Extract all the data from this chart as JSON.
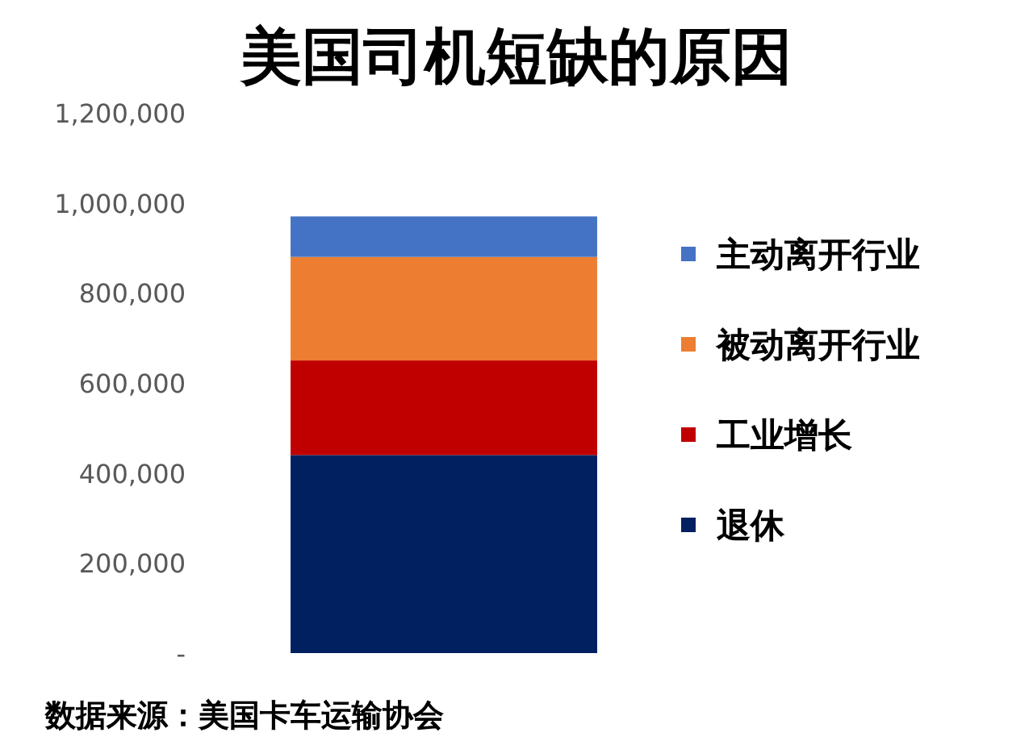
{
  "chart_data": {
    "type": "bar",
    "title": "美国司机短缺的原因",
    "stacked": true,
    "categories": [
      null
    ],
    "series": [
      {
        "name": "退休",
        "color": "#002060",
        "values": [
          440000
        ]
      },
      {
        "name": "工业增长",
        "color": "#c00000",
        "values": [
          210000
        ]
      },
      {
        "name": "被动离开行业",
        "color": "#ed7d31",
        "values": [
          230000
        ]
      },
      {
        "name": "主动离开行业",
        "color": "#4472c4",
        "values": [
          90000
        ]
      }
    ],
    "ylim": [
      0,
      1200000
    ],
    "yticks": [
      {
        "value": 0,
        "label": "-"
      },
      {
        "value": 200000,
        "label": "200,000"
      },
      {
        "value": 400000,
        "label": "400,000"
      },
      {
        "value": 600000,
        "label": "600,000"
      },
      {
        "value": 800000,
        "label": "800,000"
      },
      {
        "value": 1000000,
        "label": "1,000,000"
      },
      {
        "value": 1200000,
        "label": "1,200,000"
      }
    ],
    "legend": "right",
    "grid": false,
    "annotations": [
      "数据来源：美国卡车运输协会"
    ]
  }
}
